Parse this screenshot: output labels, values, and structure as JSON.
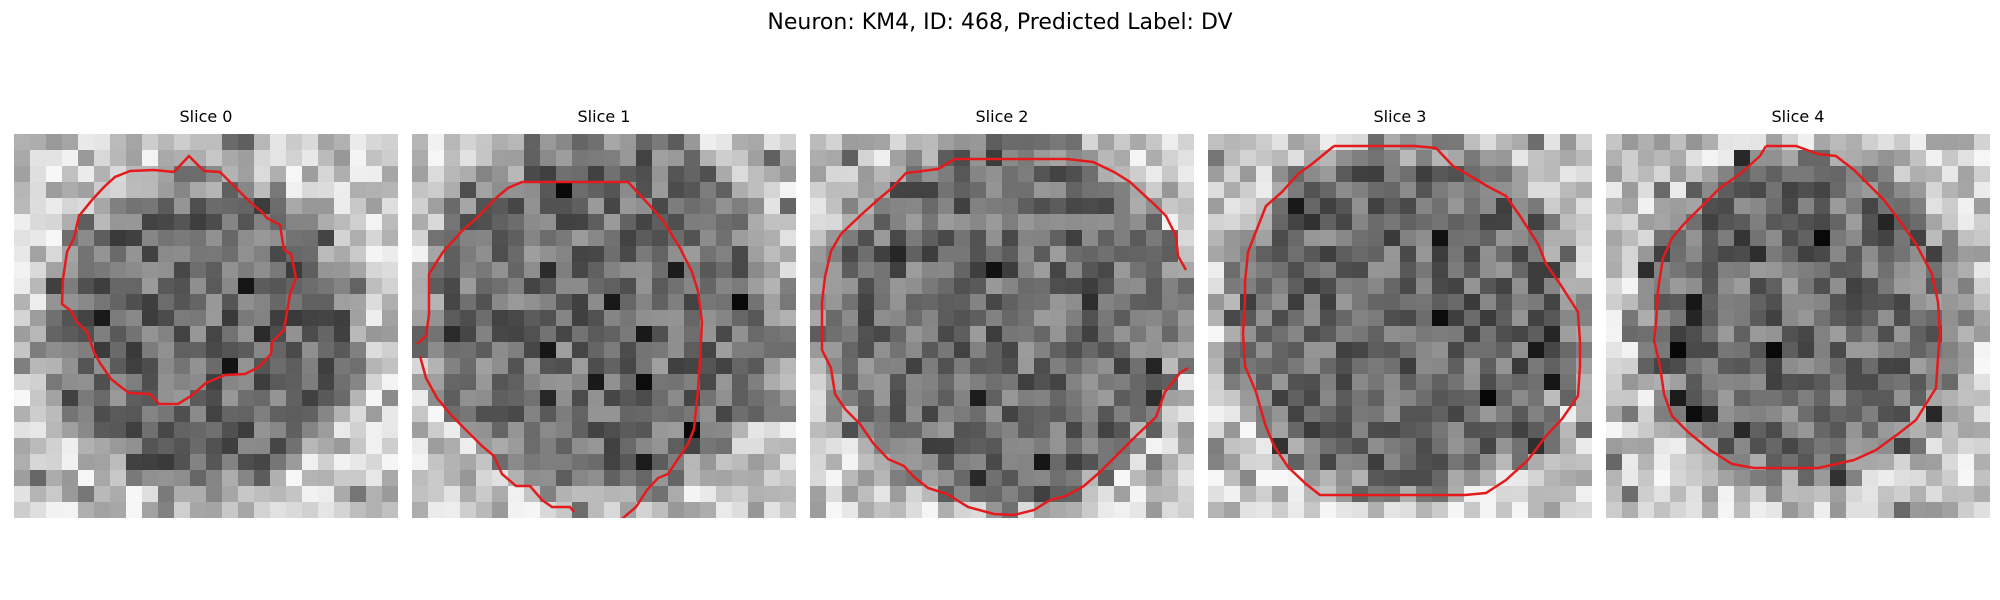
{
  "figure": {
    "title": "Neuron: KM4, ID: 468, Predicted Label: DV"
  },
  "panels": [
    {
      "title": "Slice 0",
      "darkness": 0.55
    },
    {
      "title": "Slice 1",
      "darkness": 0.45
    },
    {
      "title": "Slice 2",
      "darkness": 0.5
    },
    {
      "title": "Slice 3",
      "darkness": 0.55
    },
    {
      "title": "Slice 4",
      "darkness": 0.45
    }
  ],
  "colors": {
    "contour": "#e41a1c",
    "background": "#ffffff"
  }
}
